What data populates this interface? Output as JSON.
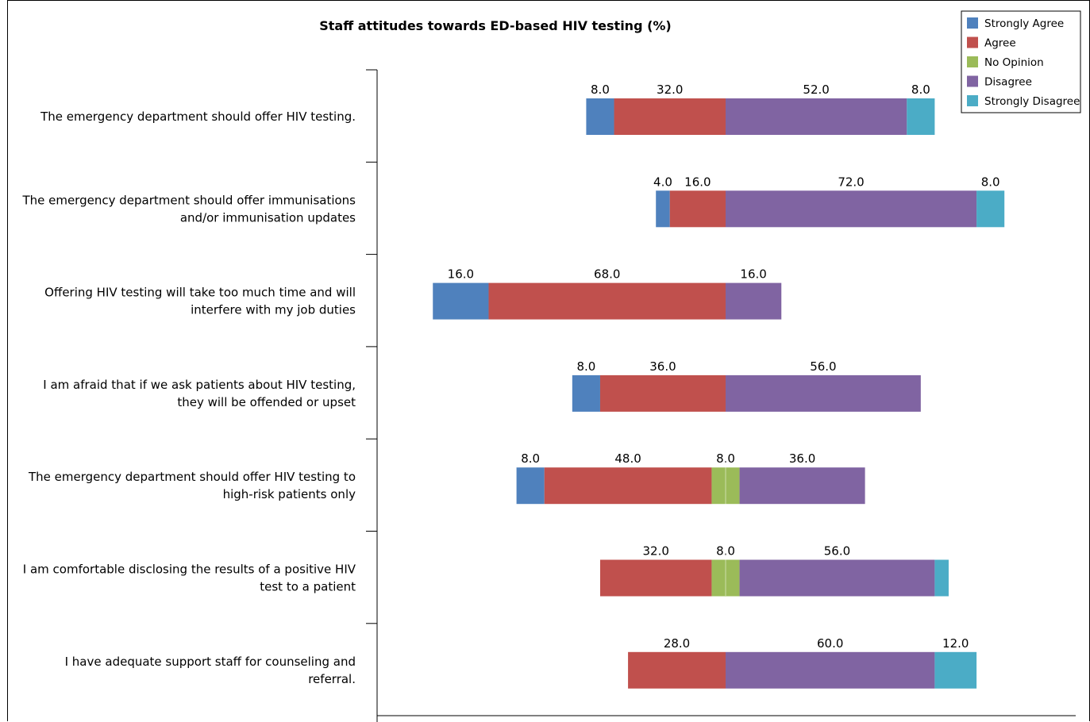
{
  "chart_data": {
    "type": "bar",
    "stacked": true,
    "orientation": "horizontal",
    "title": "Staff attitudes towards ED-based HIV testing (%)",
    "categories": [
      [
        "The emergency department should offer HIV testing."
      ],
      [
        "The emergency department should offer immunisations",
        "and/or immunisation updates"
      ],
      [
        "Offering HIV testing will take too much time and will",
        "interfere with my job duties"
      ],
      [
        "I am afraid that if we ask patients about HIV testing,",
        "they will be offended or upset"
      ],
      [
        "The emergency department should offer HIV testing to",
        "high-risk patients only"
      ],
      [
        "I am comfortable disclosing the results of a positive HIV",
        "test to a patient"
      ],
      [
        "I have adequate support staff for counseling and",
        "referral."
      ]
    ],
    "series": [
      {
        "name": "Strongly Agree",
        "color": "#4F81BD",
        "values": [
          8.0,
          4.0,
          16.0,
          8.0,
          8.0,
          0,
          0
        ]
      },
      {
        "name": "Agree",
        "color": "#C0504D",
        "values": [
          32.0,
          16.0,
          68.0,
          36.0,
          48.0,
          32.0,
          28.0
        ]
      },
      {
        "name": "No Opinion",
        "color": "#9BBB59",
        "values": [
          0,
          0,
          0,
          0,
          8.0,
          8.0,
          0
        ]
      },
      {
        "name": "Disagree",
        "color": "#8064A2",
        "values": [
          52.0,
          72.0,
          16.0,
          56.0,
          36.0,
          56.0,
          60.0
        ]
      },
      {
        "name": "Strongly Disagree",
        "color": "#4BACC6",
        "values": [
          8.0,
          8.0,
          0,
          0,
          0,
          4.0,
          12.0
        ]
      }
    ],
    "data_labels": [
      [
        "8.0",
        "32.0",
        "",
        "52.0",
        "8.0"
      ],
      [
        "4.0",
        "16.0",
        "",
        "72.0",
        "8.0"
      ],
      [
        "16.0",
        "68.0",
        "",
        "16.0",
        ""
      ],
      [
        "8.0",
        "36.0",
        "",
        "56.0",
        ""
      ],
      [
        "8.0",
        "48.0",
        "8.0",
        "36.0",
        ""
      ],
      [
        "",
        "32.0",
        "8.0",
        "56.0",
        ""
      ],
      [
        "",
        "28.0",
        "",
        "60.0",
        "12.0"
      ]
    ],
    "diverging": true,
    "legend": "top-right",
    "grid": false
  }
}
